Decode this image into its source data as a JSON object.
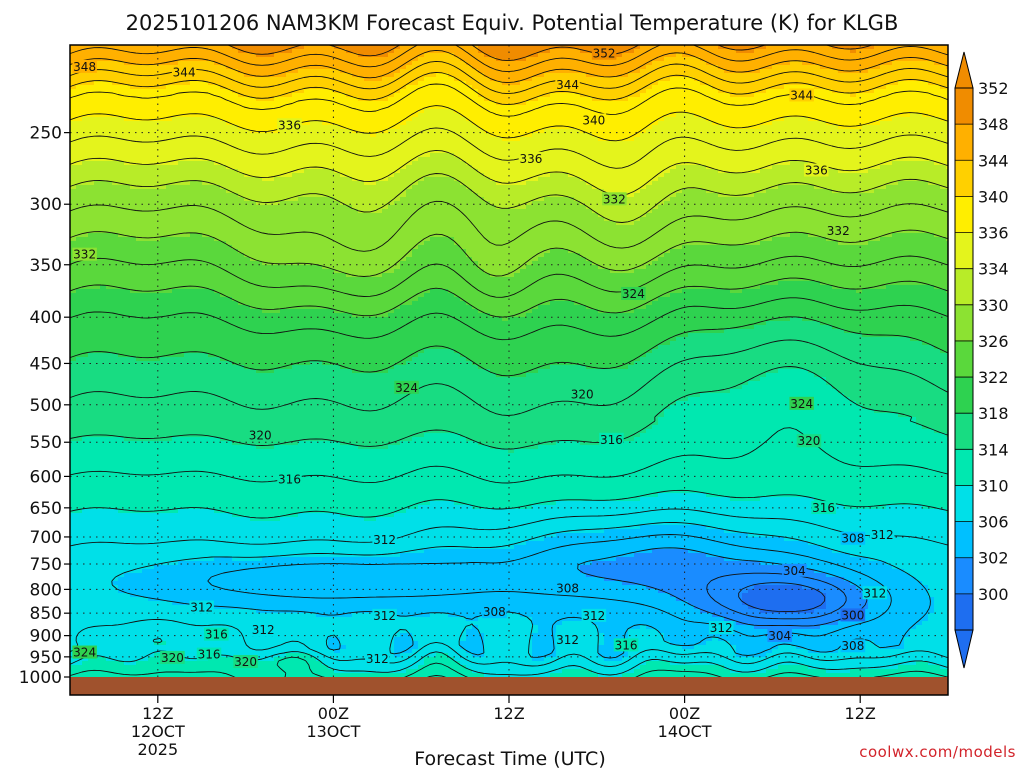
{
  "chart_data": {
    "type": "heatmap",
    "title": "2025101206 NAM3KM Forecast Equiv. Potential Temperature (K) for KLGB",
    "xlabel": "Forecast Time (UTC)",
    "ylabel": "",
    "y_scale": "log",
    "y_reversed": true,
    "y_ticks": [
      250,
      300,
      350,
      400,
      450,
      500,
      550,
      600,
      650,
      700,
      750,
      800,
      850,
      900,
      950,
      1000
    ],
    "x_ticks": [
      {
        "label": "12Z",
        "sub1": "12OCT",
        "sub2": "2025",
        "hours": 6
      },
      {
        "label": "00Z",
        "sub1": "13OCT",
        "sub2": "",
        "hours": 18
      },
      {
        "label": "12Z",
        "sub1": "",
        "sub2": "",
        "hours": 30
      },
      {
        "label": "00Z",
        "sub1": "14OCT",
        "sub2": "",
        "hours": 42
      },
      {
        "label": "12Z",
        "sub1": "",
        "sub2": "",
        "hours": 54
      }
    ],
    "x_range_hours": [
      0,
      60
    ],
    "y_range_hpa": [
      200,
      1000
    ],
    "grid": true,
    "colorbar": {
      "levels": [
        300,
        302,
        306,
        310,
        314,
        318,
        322,
        326,
        330,
        334,
        336,
        340,
        344,
        348,
        352
      ],
      "tick_labels": [
        352,
        348,
        344,
        340,
        336,
        334,
        330,
        326,
        322,
        318,
        314,
        310,
        306,
        302,
        300
      ],
      "colors": [
        "#1e6ef0",
        "#1a8cff",
        "#00c0ff",
        "#00e0e8",
        "#00e8b0",
        "#18dc82",
        "#2ed250",
        "#5ad83c",
        "#8ce232",
        "#b8ec28",
        "#e4f41c",
        "#ffee00",
        "#ffd000",
        "#ffb000",
        "#f08c00"
      ]
    },
    "contour_interval": 2,
    "contour_labels": [
      {
        "value": 352,
        "hours": 36.5,
        "hpa": 205
      },
      {
        "value": 348,
        "hours": 1.0,
        "hpa": 212
      },
      {
        "value": 344,
        "hours": 7.8,
        "hpa": 215
      },
      {
        "value": 344,
        "hours": 34.0,
        "hpa": 222
      },
      {
        "value": 344,
        "hours": 50.0,
        "hpa": 228
      },
      {
        "value": 340,
        "hours": 35.8,
        "hpa": 243
      },
      {
        "value": 336,
        "hours": 15.0,
        "hpa": 246
      },
      {
        "value": 336,
        "hours": 31.5,
        "hpa": 268
      },
      {
        "value": 336,
        "hours": 51.0,
        "hpa": 276
      },
      {
        "value": 332,
        "hours": 37.2,
        "hpa": 297
      },
      {
        "value": 332,
        "hours": 52.5,
        "hpa": 322
      },
      {
        "value": 332,
        "hours": 1.0,
        "hpa": 342
      },
      {
        "value": 324,
        "hours": 38.5,
        "hpa": 378
      },
      {
        "value": 324,
        "hours": 23.0,
        "hpa": 480
      },
      {
        "value": 324,
        "hours": 50.0,
        "hpa": 500
      },
      {
        "value": 320,
        "hours": 35.0,
        "hpa": 488
      },
      {
        "value": 320,
        "hours": 13.0,
        "hpa": 542
      },
      {
        "value": 320,
        "hours": 50.5,
        "hpa": 550
      },
      {
        "value": 316,
        "hours": 37.0,
        "hpa": 548
      },
      {
        "value": 316,
        "hours": 15.0,
        "hpa": 606
      },
      {
        "value": 316,
        "hours": 51.5,
        "hpa": 652
      },
      {
        "value": 312,
        "hours": 21.5,
        "hpa": 707
      },
      {
        "value": 312,
        "hours": 55.5,
        "hpa": 698
      },
      {
        "value": 308,
        "hours": 53.5,
        "hpa": 705
      },
      {
        "value": 304,
        "hours": 49.5,
        "hpa": 765
      },
      {
        "value": 308,
        "hours": 34.0,
        "hpa": 800
      },
      {
        "value": 312,
        "hours": 9.0,
        "hpa": 840
      },
      {
        "value": 312,
        "hours": 21.5,
        "hpa": 858
      },
      {
        "value": 308,
        "hours": 29.0,
        "hpa": 850
      },
      {
        "value": 312,
        "hours": 35.8,
        "hpa": 858
      },
      {
        "value": 312,
        "hours": 55.0,
        "hpa": 810
      },
      {
        "value": 300,
        "hours": 53.5,
        "hpa": 857
      },
      {
        "value": 312,
        "hours": 44.5,
        "hpa": 885
      },
      {
        "value": 304,
        "hours": 48.5,
        "hpa": 903
      },
      {
        "value": 316,
        "hours": 10.0,
        "hpa": 900
      },
      {
        "value": 312,
        "hours": 13.2,
        "hpa": 890
      },
      {
        "value": 312,
        "hours": 34.0,
        "hpa": 912
      },
      {
        "value": 316,
        "hours": 38.0,
        "hpa": 925
      },
      {
        "value": 308,
        "hours": 53.5,
        "hpa": 927
      },
      {
        "value": 316,
        "hours": 9.5,
        "hpa": 947
      },
      {
        "value": 324,
        "hours": 1.0,
        "hpa": 942
      },
      {
        "value": 320,
        "hours": 7.0,
        "hpa": 955
      },
      {
        "value": 320,
        "hours": 12.0,
        "hpa": 965
      },
      {
        "value": 312,
        "hours": 21.0,
        "hpa": 958
      }
    ]
  },
  "credit": "coolwx.com/models"
}
